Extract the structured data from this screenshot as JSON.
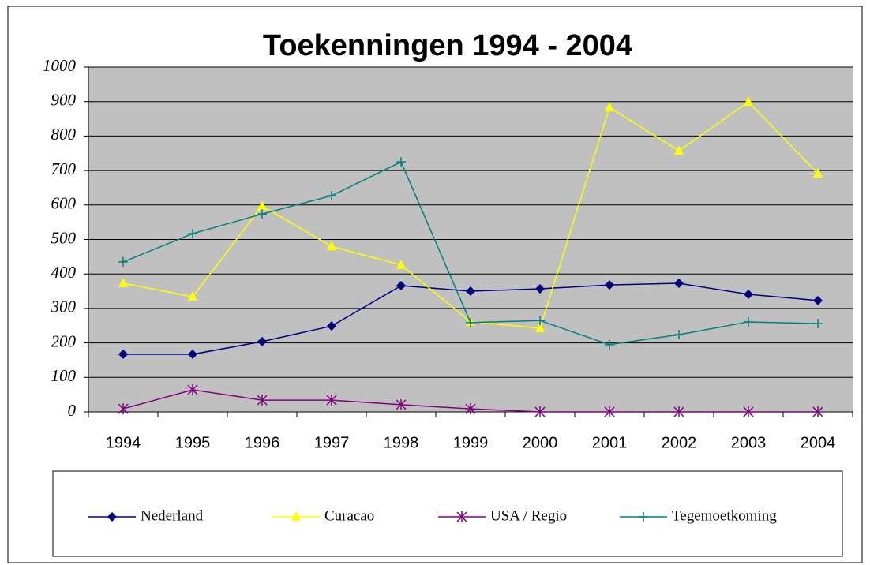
{
  "chart_data": {
    "type": "line",
    "title": "Toekenningen 1994 - 2004",
    "categories": [
      "1994",
      "1995",
      "1996",
      "1997",
      "1998",
      "1999",
      "2000",
      "2001",
      "2002",
      "2003",
      "2004"
    ],
    "series": [
      {
        "name": "Nederland",
        "color": "#000080",
        "marker": "diamond",
        "values": [
          167,
          167,
          204,
          249,
          366,
          350,
          357,
          368,
          373,
          341,
          323
        ]
      },
      {
        "name": "Curacao",
        "color": "#ffff00",
        "marker": "triangle",
        "values": [
          373,
          334,
          597,
          480,
          426,
          261,
          243,
          883,
          757,
          899,
          691
        ]
      },
      {
        "name": "USA / Regio",
        "color": "#800080",
        "marker": "star",
        "values": [
          9,
          64,
          34,
          34,
          21,
          9,
          0,
          0,
          0,
          0,
          0
        ]
      },
      {
        "name": "Tegemoetkoming",
        "color": "#008080",
        "marker": "plus",
        "values": [
          435,
          517,
          574,
          627,
          725,
          259,
          265,
          195,
          224,
          261,
          256
        ]
      }
    ],
    "ylim": [
      0,
      1000
    ],
    "yticks": [
      0,
      100,
      200,
      300,
      400,
      500,
      600,
      700,
      800,
      900,
      1000
    ],
    "grid": true,
    "legend": "bottom"
  }
}
